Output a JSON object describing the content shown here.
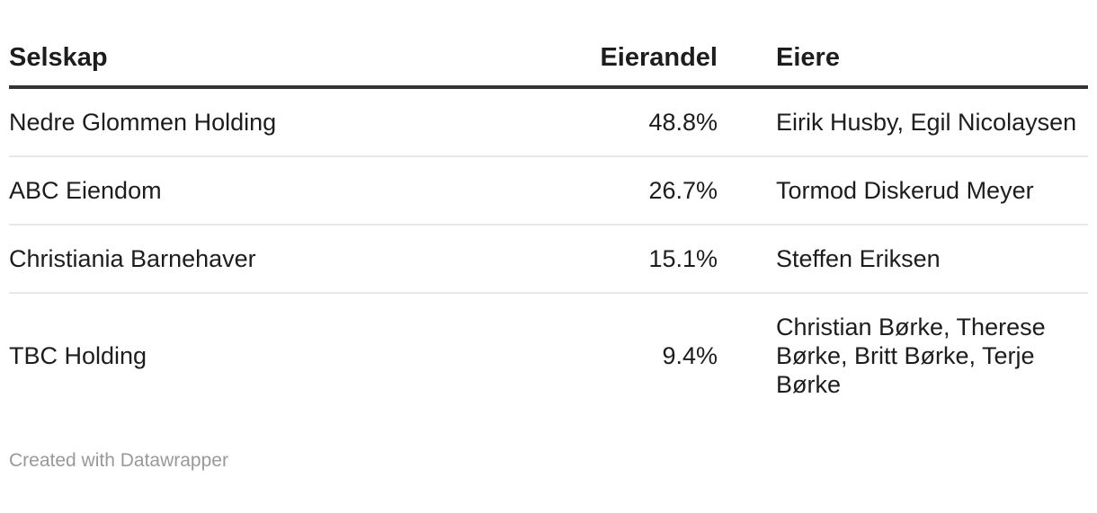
{
  "chart_data": {
    "type": "table",
    "title": "",
    "columns": [
      "Selskap",
      "Eierandel",
      "Eiere"
    ],
    "rows": [
      [
        "Nedre Glommen Holding",
        "48.8%",
        "Eirik Husby, Egil Nicolaysen"
      ],
      [
        "ABC Eiendom",
        "26.7%",
        "Tormod Diskerud Meyer"
      ],
      [
        "Christiania Barnehaver",
        "15.1%",
        "Steffen Eriksen"
      ],
      [
        "TBC Holding",
        "9.4%",
        "Christian Børke, Therese Børke, Britt Børke, Terje Børke"
      ]
    ],
    "column_alignments": [
      "left",
      "right",
      "left"
    ],
    "grid": "horizontal-dividers",
    "header_rule_color": "#333333",
    "row_divider_color": "#e8e8e8",
    "text_color": "#1d1d1d",
    "credit_color": "#999999",
    "background_color": "#ffffff"
  },
  "footer": {
    "credit": "Created with Datawrapper"
  }
}
